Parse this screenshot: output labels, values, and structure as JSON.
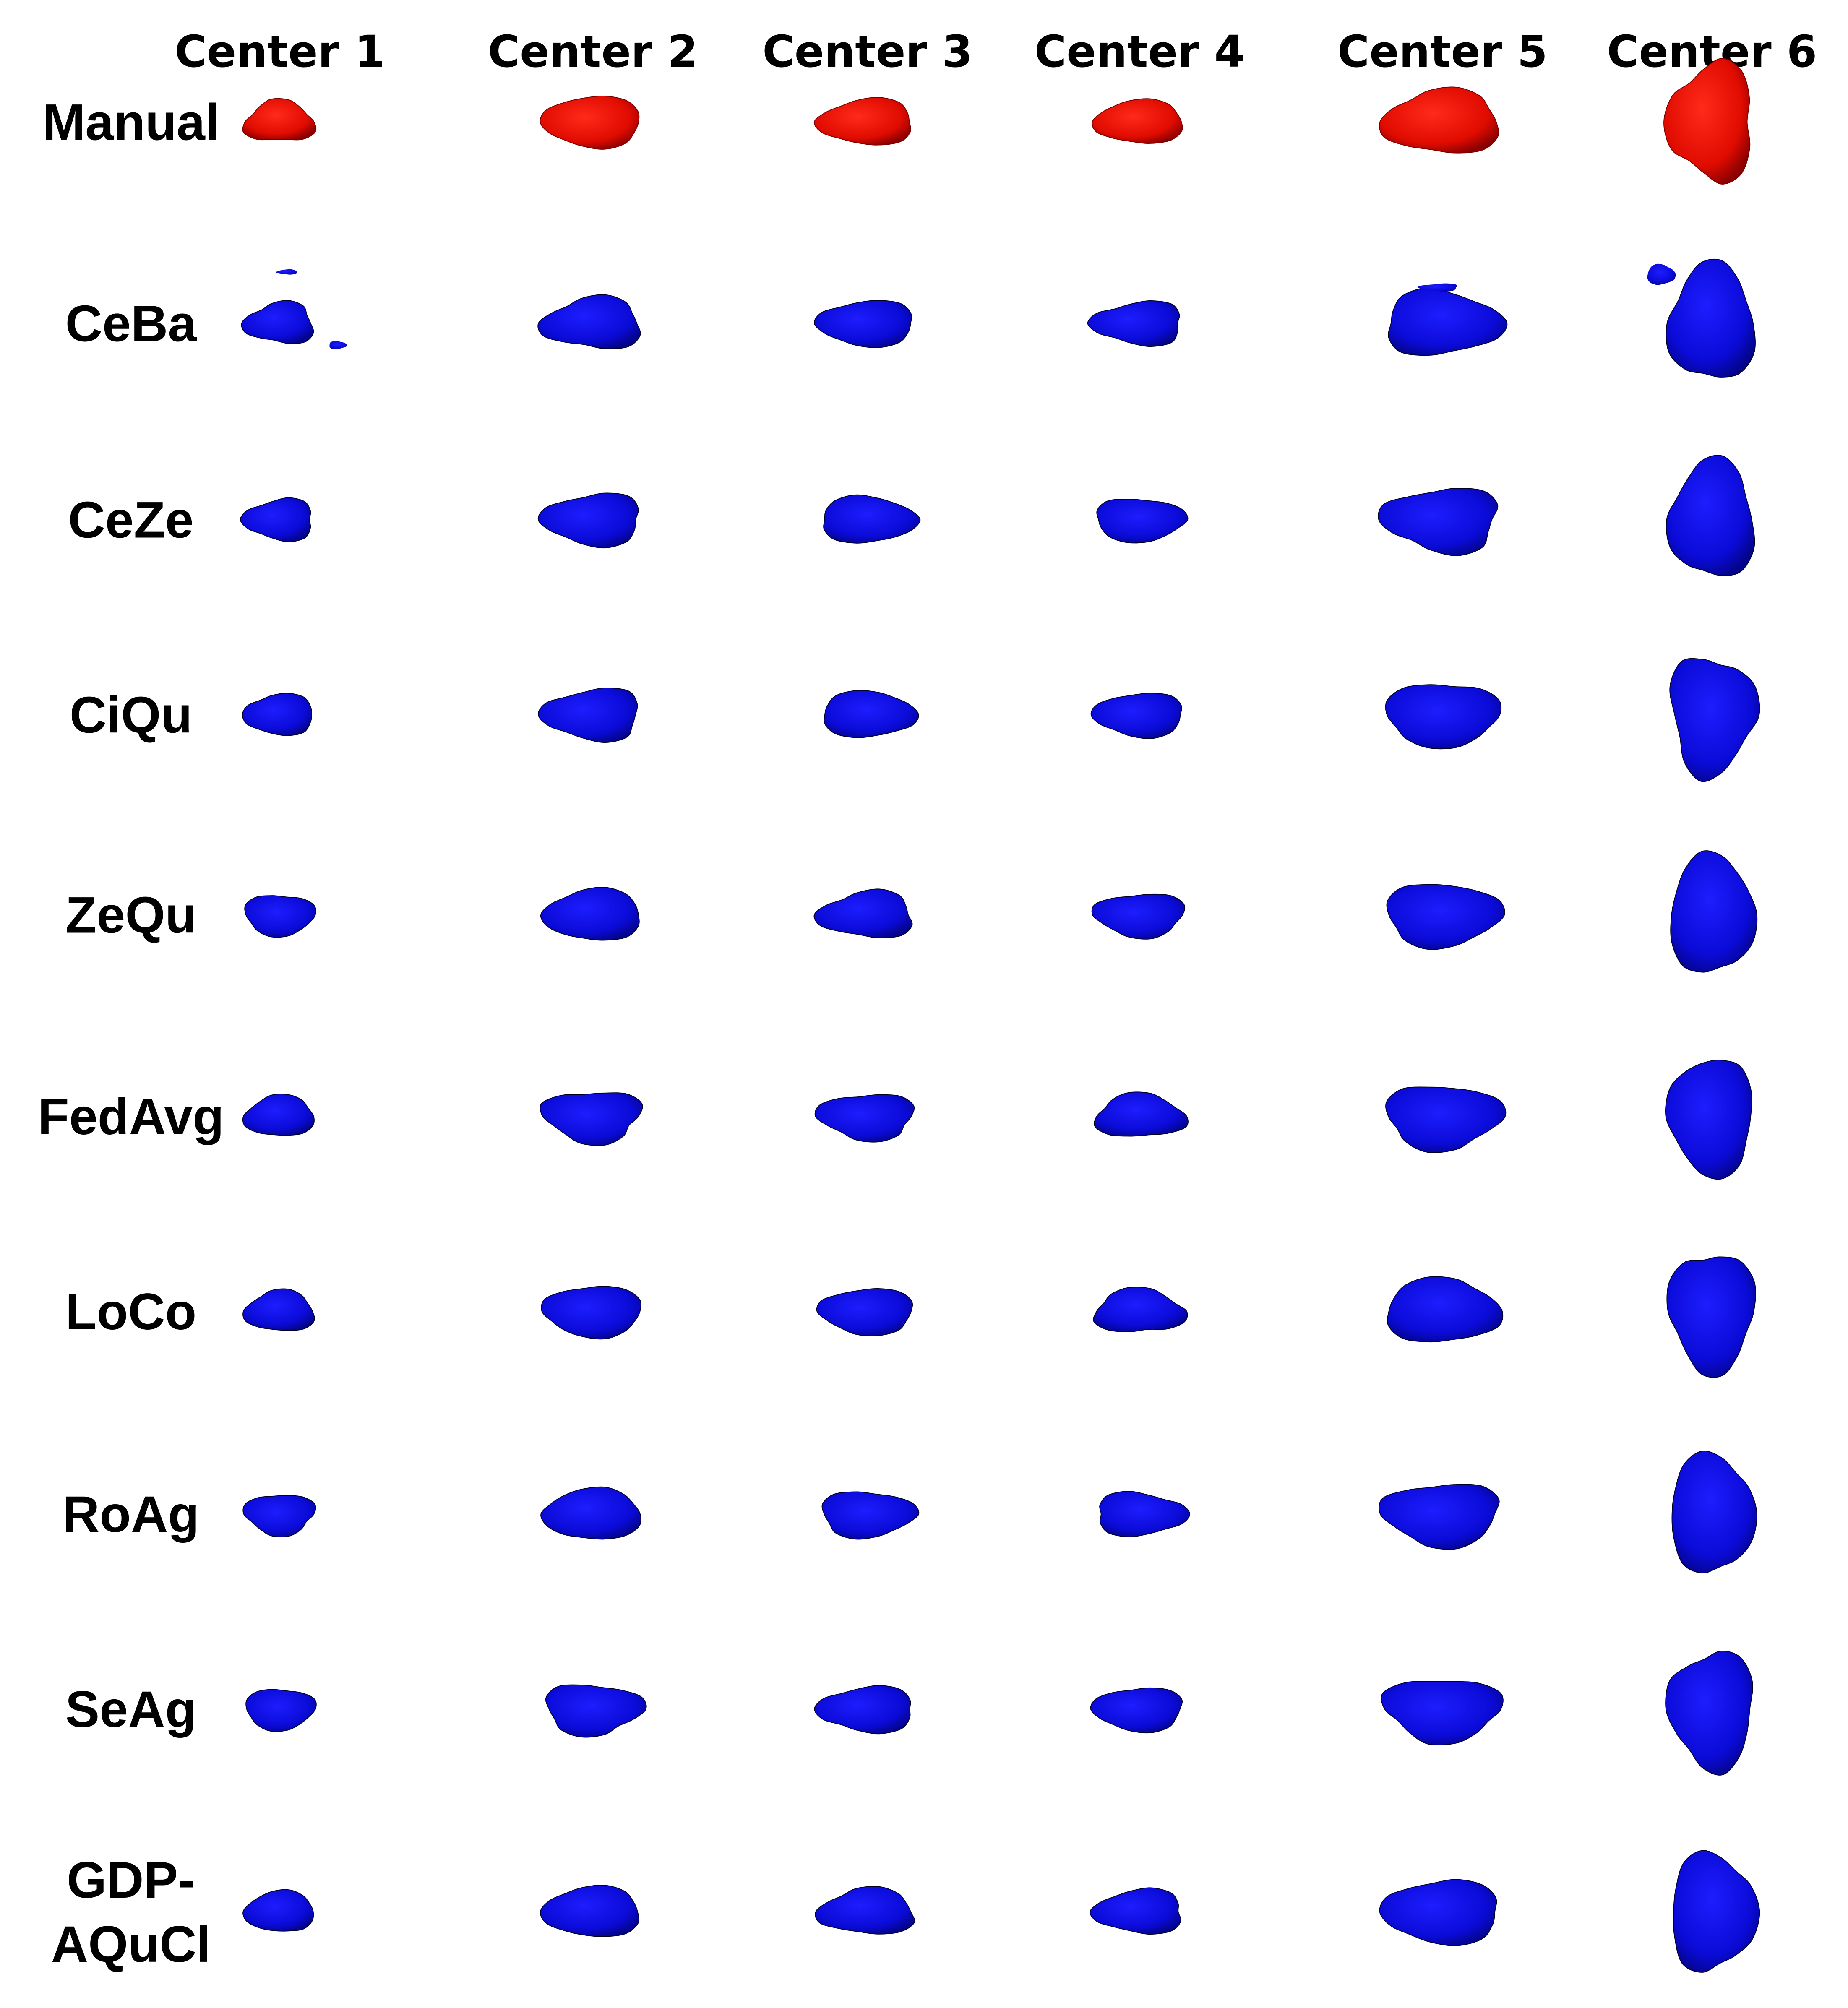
{
  "columns": [
    "Center 1",
    "Center 2",
    "Center 3",
    "Center 4",
    "Center 5",
    "Center 6"
  ],
  "rows": [
    [
      "Manual"
    ],
    [
      "CeBa"
    ],
    [
      "CeZe"
    ],
    [
      "CiQu"
    ],
    [
      "ZeQu"
    ],
    [
      "FedAvg"
    ],
    [
      "LoCo"
    ],
    [
      "RoAg"
    ],
    [
      "SeAg"
    ],
    [
      "GDP-",
      "AQuCl"
    ]
  ]
}
